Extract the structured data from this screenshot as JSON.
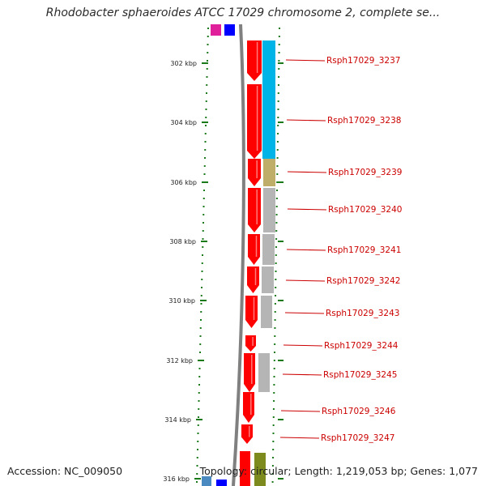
{
  "title": "Rhodobacter sphaeroides ATCC 17029 chromosome 2, complete se...",
  "footer": {
    "accession": "Accession: NC_009050",
    "summary": "Topology: circular; Length: 1,219,053 bp; Genes: 1,077"
  },
  "ruler": {
    "ticks": [
      {
        "label": "302 kbp"
      },
      {
        "label": "304 kbp"
      },
      {
        "label": "306 kbp"
      },
      {
        "label": "308 kbp"
      },
      {
        "label": "310 kbp"
      },
      {
        "label": "312 kbp"
      },
      {
        "label": "314 kbp"
      },
      {
        "label": "316 kbp"
      }
    ]
  },
  "genes": [
    {
      "name": "Rsph17029_3237"
    },
    {
      "name": "Rsph17029_3238"
    },
    {
      "name": "Rsph17029_3239"
    },
    {
      "name": "Rsph17029_3240"
    },
    {
      "name": "Rsph17029_3241"
    },
    {
      "name": "Rsph17029_3242"
    },
    {
      "name": "Rsph17029_3243"
    },
    {
      "name": "Rsph17029_3244"
    },
    {
      "name": "Rsph17029_3245"
    },
    {
      "name": "Rsph17029_3246"
    },
    {
      "name": "Rsph17029_3247"
    }
  ],
  "colors": {
    "cds_arrow": "#ff0000",
    "label_text": "#cc0000",
    "label_line": "#cc0000",
    "tick": "#1a7a1a",
    "backbone": "#808080",
    "cog_cyan": "#00b4e8",
    "cog_khaki": "#bfae6a",
    "cog_gray": "#b5b5b5"
  }
}
